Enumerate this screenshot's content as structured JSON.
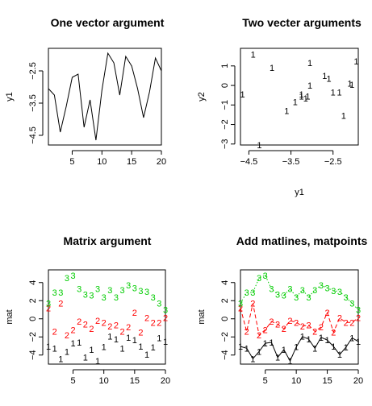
{
  "chart_data": [
    {
      "type": "line",
      "title": "One vector argument",
      "xlabel": "",
      "ylabel": "y1",
      "xlim": [
        1,
        20
      ],
      "ylim": [
        -4.8,
        -1.8
      ],
      "xticks": [
        5,
        10,
        15,
        20
      ],
      "yticks": [
        -4.5,
        -3.5,
        -2.5
      ],
      "x": [
        1,
        2,
        3,
        4,
        5,
        6,
        7,
        8,
        9,
        10,
        11,
        12,
        13,
        14,
        15,
        16,
        17,
        18,
        19,
        20
      ],
      "values": [
        -3.05,
        -3.25,
        -4.4,
        -3.6,
        -2.7,
        -2.6,
        -4.25,
        -3.4,
        -4.65,
        -3.1,
        -1.95,
        -2.25,
        -3.25,
        -2.05,
        -2.35,
        -3.05,
        -3.95,
        -3.15,
        -2.1,
        -2.5
      ]
    },
    {
      "type": "scatter",
      "title": "Two vecter arguments",
      "xlabel": "y1",
      "ylabel": "y2",
      "xlim": [
        -4.7,
        -1.9
      ],
      "ylim": [
        -3.05,
        1.9
      ],
      "xticks": [
        -4.5,
        -3.5,
        -2.5
      ],
      "yticks": [
        -3,
        -2,
        -1,
        0,
        1
      ],
      "marker": "1",
      "x": [
        -3.05,
        -3.25,
        -4.4,
        -3.6,
        -2.7,
        -2.6,
        -4.25,
        -3.4,
        -4.65,
        -3.1,
        -1.95,
        -2.25,
        -3.25,
        -2.05,
        -2.35,
        -3.05,
        -3.95,
        -3.15,
        -2.1,
        -2.5
      ],
      "values": [
        1.15,
        -0.55,
        1.6,
        -1.3,
        0.5,
        0.35,
        -3.05,
        -0.85,
        -0.45,
        -0.55,
        1.25,
        -1.55,
        -0.45,
        0.05,
        -0.35,
        0.0,
        0.9,
        -0.65,
        0.1,
        -0.35
      ]
    },
    {
      "type": "scatter",
      "title": "Matrix argument",
      "xlabel": "",
      "ylabel": "mat",
      "xlim": [
        1,
        20
      ],
      "ylim": [
        -5,
        5.4
      ],
      "xticks": [
        5,
        10,
        15,
        20
      ],
      "yticks": [
        -4,
        -2,
        0,
        2,
        4
      ],
      "series": [
        {
          "marker": "1",
          "color": "#000000",
          "values": [
            -3.05,
            -3.25,
            -4.4,
            -3.6,
            -2.7,
            -2.6,
            -4.25,
            -3.4,
            -4.65,
            -3.1,
            -1.95,
            -2.25,
            -3.25,
            -2.05,
            -2.35,
            -3.05,
            -3.95,
            -3.15,
            -2.1,
            -2.5
          ]
        },
        {
          "marker": "2",
          "color": "#ff0000",
          "values": [
            1.2,
            -1.4,
            1.7,
            -1.8,
            -1.2,
            -0.3,
            -0.6,
            -1.1,
            -0.2,
            -0.4,
            -0.8,
            -0.7,
            -1.4,
            -0.9,
            0.7,
            -1.5,
            0.1,
            -0.4,
            -0.4,
            0.1
          ]
        },
        {
          "marker": "3",
          "color": "#00cc00",
          "values": [
            1.7,
            2.9,
            2.9,
            4.5,
            4.8,
            3.3,
            2.7,
            2.6,
            3.3,
            2.4,
            3.2,
            2.4,
            3.2,
            3.7,
            3.4,
            3.1,
            3.0,
            2.4,
            1.7,
            1.0
          ]
        }
      ]
    },
    {
      "type": "line",
      "title": "Add matlines, matpoints",
      "xlabel": "",
      "ylabel": "mat",
      "xlim": [
        1,
        20
      ],
      "ylim": [
        -5,
        5.4
      ],
      "xticks": [
        5,
        10,
        15,
        20
      ],
      "yticks": [
        -4,
        -2,
        0,
        2,
        4
      ],
      "series": [
        {
          "marker": "1",
          "color": "#000000",
          "dash": "solid",
          "values": [
            -3.05,
            -3.25,
            -4.4,
            -3.6,
            -2.7,
            -2.6,
            -4.25,
            -3.4,
            -4.65,
            -3.1,
            -1.95,
            -2.25,
            -3.25,
            -2.05,
            -2.35,
            -3.05,
            -3.95,
            -3.15,
            -2.1,
            -2.5
          ]
        },
        {
          "marker": "2",
          "color": "#ff0000",
          "dash": "dashed",
          "values": [
            1.2,
            -1.4,
            1.7,
            -1.8,
            -1.2,
            -0.3,
            -0.6,
            -1.1,
            -0.2,
            -0.4,
            -0.8,
            -0.7,
            -1.4,
            -0.9,
            0.7,
            -1.5,
            0.1,
            -0.4,
            -0.4,
            0.1
          ]
        },
        {
          "marker": "3",
          "color": "#00cc00",
          "dash": "dotted",
          "values": [
            1.7,
            2.9,
            2.9,
            4.5,
            4.8,
            3.3,
            2.7,
            2.6,
            3.3,
            2.4,
            3.2,
            2.4,
            3.2,
            3.7,
            3.4,
            3.1,
            3.0,
            2.4,
            1.7,
            1.0
          ]
        }
      ]
    }
  ]
}
